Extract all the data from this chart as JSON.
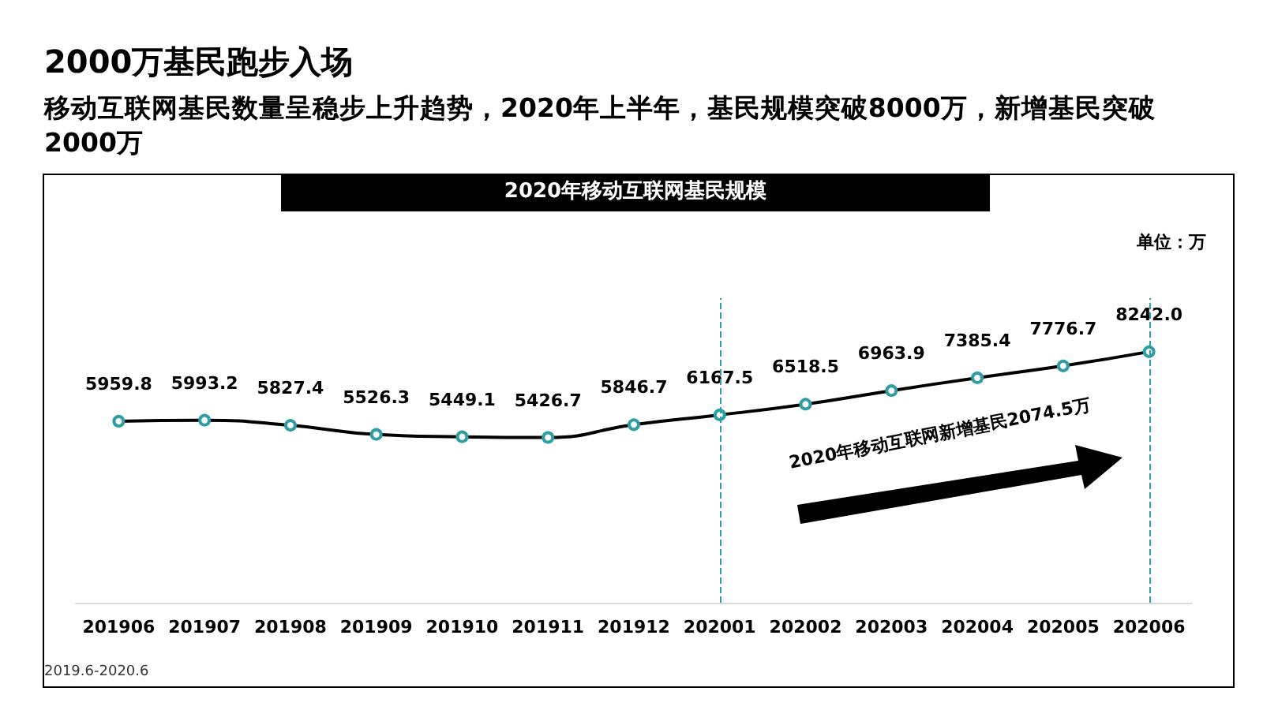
{
  "chart_data": {
    "type": "line",
    "title": "2000万基民跑步入场",
    "subtitle": "移动互联网基民数量呈稳步上升趋势，2020年上半年，基民规模突破8000万，新增基民突破2000万",
    "annotations": [
      "2020年移动互联网基民规模",
      "2020年移动互联网新增基民2074.5万",
      "2019.6-2020.6",
      "单位：万"
    ],
    "categories": [
      "201906",
      "201907",
      "201908",
      "201909",
      "201910",
      "201911",
      "201912",
      "202001",
      "202002",
      "202003",
      "202004",
      "202005",
      "202006"
    ],
    "series": [
      {
        "color": "#000000",
        "values": [
          5959.8,
          5993.2,
          5827.4,
          5526.3,
          5449.1,
          5426.7,
          5846.7,
          6167.5,
          6518.5,
          6963.9,
          7385.4,
          7776.7,
          8242.0
        ],
        "value_labels": [
          "5959.8",
          "5993.2",
          "5827.4",
          "5526.3",
          "5449.1",
          "5426.7",
          "5846.7",
          "6167.5",
          "6518.5",
          "6963.9",
          "7385.4",
          "7776.7",
          "8242.0"
        ]
      }
    ],
    "ref_lines": [
      {
        "axis": "x",
        "value": "202001",
        "color": "#2e9ea3",
        "line_style": "dashed"
      },
      {
        "axis": "x",
        "value": "202006",
        "color": "#2e9ea3",
        "line_style": "dashed"
      }
    ],
    "marker": "circle",
    "line_style": "solid",
    "grid": false,
    "tick_labels": "x"
  }
}
